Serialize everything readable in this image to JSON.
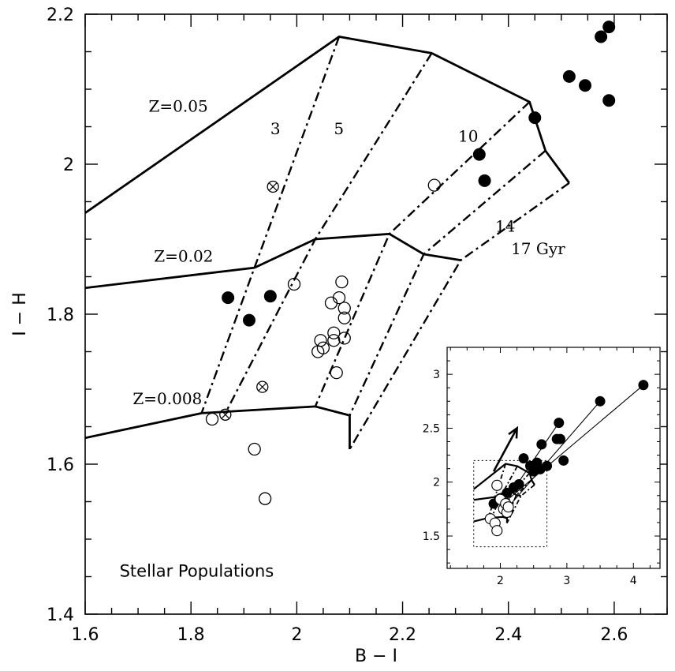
{
  "chart_data": [
    {
      "type": "scatter",
      "xlabel": "B − I",
      "ylabel": "I − H",
      "xlim": [
        1.6,
        2.7
      ],
      "ylim": [
        1.4,
        2.2
      ],
      "x_ticks": [
        "1.6",
        "1.8",
        "2",
        "2.2",
        "2.4",
        "2.6"
      ],
      "y_ticks": [
        "1.4",
        "1.6",
        "1.8",
        "2",
        "2.2"
      ],
      "annotations": [
        {
          "text": "Z=0.05",
          "x": 1.72,
          "y": 2.07
        },
        {
          "text": "Z=0.02",
          "x": 1.73,
          "y": 1.87
        },
        {
          "text": "Z=0.008",
          "x": 1.69,
          "y": 1.68
        },
        {
          "text": "3",
          "x": 1.95,
          "y": 2.04
        },
        {
          "text": "5",
          "x": 2.07,
          "y": 2.04
        },
        {
          "text": "10",
          "x": 2.305,
          "y": 2.03
        },
        {
          "text": "14",
          "x": 2.375,
          "y": 1.91
        },
        {
          "text": "17 Gyr",
          "x": 2.405,
          "y": 1.88
        },
        {
          "text": "Stellar Populations",
          "x": 1.665,
          "y": 1.45
        }
      ],
      "isometallic_tracks": [
        {
          "label": "Z=0.05",
          "points": [
            [
              1.6,
              1.935
            ],
            [
              2.08,
              2.17
            ],
            [
              2.255,
              2.148
            ],
            [
              2.44,
              2.083
            ],
            [
              2.47,
              2.018
            ],
            [
              2.515,
              1.975
            ]
          ]
        },
        {
          "label": "Z=0.02",
          "points": [
            [
              1.6,
              1.835
            ],
            [
              1.92,
              1.862
            ],
            [
              2.035,
              1.9
            ],
            [
              2.175,
              1.907
            ],
            [
              2.24,
              1.88
            ],
            [
              2.31,
              1.872
            ]
          ]
        },
        {
          "label": "Z=0.008",
          "points": [
            [
              1.6,
              1.635
            ],
            [
              1.82,
              1.668
            ],
            [
              2.035,
              1.677
            ],
            [
              2.1,
              1.665
            ],
            [
              2.1,
              1.62
            ]
          ]
        }
      ],
      "isochrones": [
        {
          "label": "3",
          "points": [
            [
              2.08,
              2.17
            ],
            [
              1.92,
              1.862
            ],
            [
              1.82,
              1.668
            ]
          ]
        },
        {
          "label": "5",
          "points": [
            [
              2.255,
              2.148
            ],
            [
              2.035,
              1.9
            ],
            [
              1.865,
              1.668
            ]
          ]
        },
        {
          "label": "10",
          "points": [
            [
              2.44,
              2.083
            ],
            [
              2.175,
              1.907
            ],
            [
              2.035,
              1.677
            ]
          ]
        },
        {
          "label": "14",
          "points": [
            [
              2.47,
              2.018
            ],
            [
              2.24,
              1.88
            ],
            [
              2.1,
              1.665
            ]
          ]
        },
        {
          "label": "17 Gyr",
          "points": [
            [
              2.515,
              1.975
            ],
            [
              2.31,
              1.872
            ],
            [
              2.1,
              1.62
            ]
          ]
        }
      ],
      "series": [
        {
          "marker": "filled-circle",
          "points": [
            [
              1.87,
              1.822
            ],
            [
              1.91,
              1.792
            ],
            [
              1.95,
              1.824
            ],
            [
              2.345,
              2.013
            ],
            [
              2.355,
              1.978
            ],
            [
              2.45,
              2.062
            ],
            [
              2.515,
              2.117
            ],
            [
              2.545,
              2.105
            ],
            [
              2.575,
              2.17
            ],
            [
              2.59,
              2.183
            ],
            [
              2.59,
              2.085
            ]
          ]
        },
        {
          "marker": "open-circle",
          "points": [
            [
              1.84,
              1.66
            ],
            [
              1.92,
              1.62
            ],
            [
              1.94,
              1.554
            ],
            [
              1.995,
              1.84
            ],
            [
              2.04,
              1.75
            ],
            [
              2.045,
              1.765
            ],
            [
              2.05,
              1.755
            ],
            [
              2.065,
              1.815
            ],
            [
              2.07,
              1.775
            ],
            [
              2.07,
              1.765
            ],
            [
              2.075,
              1.722
            ],
            [
              2.08,
              1.822
            ],
            [
              2.085,
              1.843
            ],
            [
              2.09,
              1.808
            ],
            [
              2.09,
              1.795
            ],
            [
              2.09,
              1.768
            ],
            [
              2.26,
              1.972
            ]
          ]
        },
        {
          "marker": "crossed-circle",
          "points": [
            [
              1.865,
              1.666
            ],
            [
              1.935,
              1.703
            ],
            [
              1.955,
              1.97
            ]
          ]
        }
      ]
    },
    {
      "type": "scatter",
      "xlim": [
        1.2,
        4.4
      ],
      "ylim": [
        1.2,
        3.25
      ],
      "x_ticks": [
        "2",
        "3",
        "4"
      ],
      "y_ticks": [
        "1.5",
        "2",
        "2.5",
        "3"
      ],
      "zoom_box": {
        "x": [
          1.6,
          2.7
        ],
        "y": [
          1.4,
          2.2
        ]
      },
      "arrow": {
        "from": [
          1.9,
          2.1
        ],
        "to": [
          2.25,
          2.5
        ]
      },
      "series": [
        {
          "marker": "filled-circle",
          "points": [
            [
              1.9,
              1.8
            ],
            [
              2.0,
              1.85
            ],
            [
              2.1,
              1.9
            ],
            [
              2.2,
              1.95
            ],
            [
              2.28,
              1.98
            ],
            [
              2.35,
              2.22
            ],
            [
              2.45,
              2.15
            ],
            [
              2.5,
              2.1
            ],
            [
              2.55,
              2.18
            ],
            [
              2.6,
              2.12
            ],
            [
              2.62,
              2.35
            ],
            [
              2.7,
              2.15
            ],
            [
              2.85,
              2.4
            ],
            [
              2.88,
              2.55
            ],
            [
              2.9,
              2.4
            ],
            [
              2.95,
              2.2
            ],
            [
              3.5,
              2.75
            ],
            [
              4.15,
              2.9
            ]
          ]
        },
        {
          "marker": "open-circle",
          "points": [
            [
              1.85,
              1.66
            ],
            [
              1.92,
              1.62
            ],
            [
              1.95,
              1.55
            ],
            [
              1.95,
              1.97
            ],
            [
              2.0,
              1.84
            ],
            [
              2.05,
              1.75
            ],
            [
              2.08,
              1.8
            ],
            [
              2.1,
              1.72
            ],
            [
              2.12,
              1.77
            ]
          ]
        }
      ],
      "regression_lines": [
        [
          [
            2.0,
            1.78
          ],
          [
            4.15,
            2.9
          ]
        ],
        [
          [
            2.05,
            1.72
          ],
          [
            3.5,
            2.75
          ]
        ],
        [
          [
            2.0,
            1.75
          ],
          [
            2.88,
            2.55
          ]
        ]
      ]
    }
  ]
}
